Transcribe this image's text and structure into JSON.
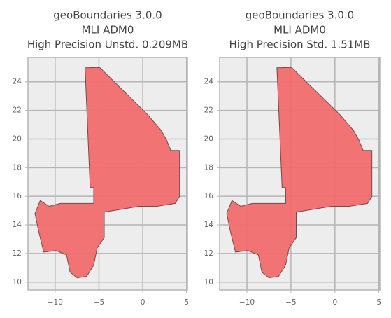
{
  "chart_data": [
    {
      "type": "map",
      "title": [
        "geoBoundaries 3.0.0",
        "MLI ADM0",
        "High Precision Unstd. 0.209MB"
      ],
      "x": [
        -6.59,
        -4.92,
        0.56,
        2.1,
        2.7,
        3.2,
        4.2,
        4.2,
        3.7,
        1.6,
        -0.4,
        -2.4,
        -4.4,
        -4.4,
        -5.2,
        -5.6,
        -6.4,
        -7.5,
        -8.3,
        -8.7,
        -9.9,
        -11.3,
        -11.9,
        -12.3,
        -11.7,
        -10.7,
        -9.4,
        -5.6,
        -5.6,
        -6.0
      ],
      "y": [
        24.98,
        25.0,
        21.7,
        20.6,
        19.95,
        19.2,
        19.2,
        16.0,
        15.5,
        15.3,
        15.3,
        15.1,
        14.9,
        13.1,
        12.4,
        11.2,
        10.4,
        10.3,
        10.7,
        11.9,
        12.2,
        12.1,
        13.6,
        14.8,
        15.7,
        15.3,
        15.5,
        15.5,
        16.6,
        16.6
      ],
      "color": "#f26d6d",
      "xlim": [
        -13.1,
        5.1
      ],
      "ylim": [
        9.45,
        25.7
      ],
      "xticks": [
        {
          "value": -10,
          "label": "−10"
        },
        {
          "value": -5,
          "label": "−5"
        },
        0,
        5
      ],
      "yticks": [
        10,
        12,
        14,
        16,
        18,
        20,
        22,
        24
      ],
      "grid": true
    },
    {
      "type": "map",
      "title": [
        "geoBoundaries 3.0.0",
        "MLI ADM0",
        "High Precision Std. 1.51MB"
      ],
      "x": [
        -6.59,
        -4.92,
        0.56,
        2.1,
        2.7,
        3.2,
        4.2,
        4.2,
        3.7,
        1.6,
        -0.4,
        -2.4,
        -4.4,
        -4.4,
        -5.2,
        -5.6,
        -6.4,
        -7.5,
        -8.3,
        -8.7,
        -9.9,
        -11.3,
        -11.9,
        -12.3,
        -11.7,
        -10.7,
        -9.4,
        -5.6,
        -5.6,
        -6.0
      ],
      "y": [
        24.98,
        25.0,
        21.7,
        20.6,
        19.95,
        19.2,
        19.2,
        16.0,
        15.5,
        15.3,
        15.3,
        15.1,
        14.9,
        13.1,
        12.4,
        11.2,
        10.4,
        10.3,
        10.7,
        11.9,
        12.2,
        12.1,
        13.6,
        14.8,
        15.7,
        15.3,
        15.5,
        15.5,
        16.6,
        16.6
      ],
      "color": "#f26d6d",
      "xlim": [
        -13.1,
        5.1
      ],
      "ylim": [
        9.45,
        25.7
      ],
      "xticks": [
        {
          "value": -10,
          "label": "−10"
        },
        {
          "value": -5,
          "label": "−5"
        },
        0,
        5
      ],
      "yticks": [
        10,
        12,
        14,
        16,
        18,
        20,
        22,
        24
      ],
      "grid": true
    }
  ]
}
